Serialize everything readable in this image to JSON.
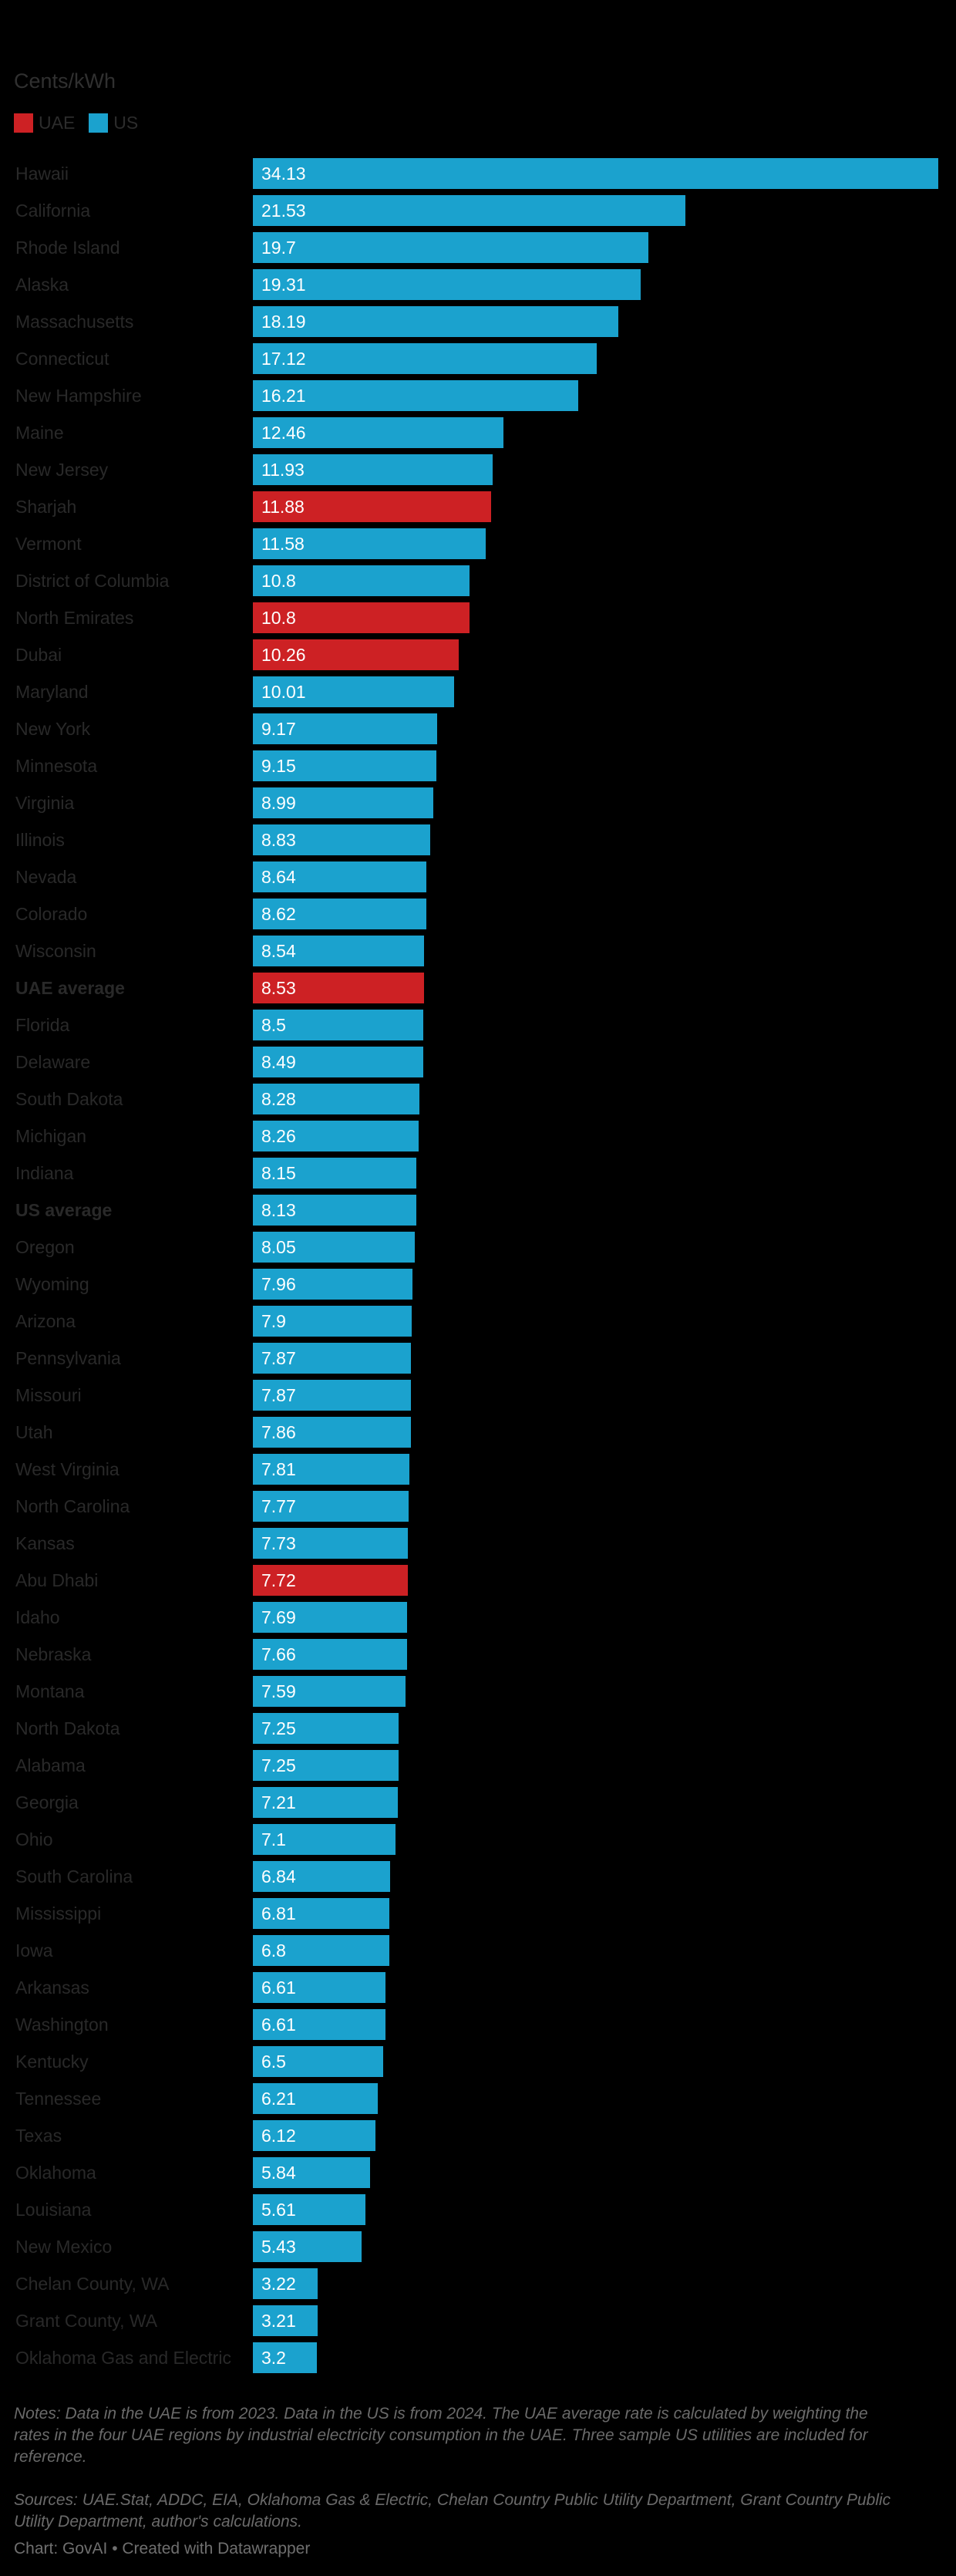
{
  "title": "Cents/kWh",
  "legend": [
    {
      "label": "UAE",
      "color": "#cd2124"
    },
    {
      "label": "US",
      "color": "#1ba2ce"
    }
  ],
  "chart_data": {
    "type": "bar",
    "orientation": "horizontal",
    "title": "Cents/kWh",
    "xlabel": "Cents/kWh",
    "xmax": 34.13,
    "grid": false,
    "legend_position": "top-left",
    "colors": {
      "UAE": "#cd2124",
      "US": "#1ba2ce"
    },
    "rows": [
      {
        "label": "Hawaii",
        "value": 34.13,
        "display": "34.13",
        "group": "US",
        "bold": false
      },
      {
        "label": "California",
        "value": 21.53,
        "display": "21.53",
        "group": "US",
        "bold": false
      },
      {
        "label": "Rhode Island",
        "value": 19.7,
        "display": "19.7",
        "group": "US",
        "bold": false
      },
      {
        "label": "Alaska",
        "value": 19.31,
        "display": "19.31",
        "group": "US",
        "bold": false
      },
      {
        "label": "Massachusetts",
        "value": 18.19,
        "display": "18.19",
        "group": "US",
        "bold": false
      },
      {
        "label": "Connecticut",
        "value": 17.12,
        "display": "17.12",
        "group": "US",
        "bold": false
      },
      {
        "label": "New Hampshire",
        "value": 16.21,
        "display": "16.21",
        "group": "US",
        "bold": false
      },
      {
        "label": "Maine",
        "value": 12.46,
        "display": "12.46",
        "group": "US",
        "bold": false
      },
      {
        "label": "New Jersey",
        "value": 11.93,
        "display": "11.93",
        "group": "US",
        "bold": false
      },
      {
        "label": "Sharjah",
        "value": 11.88,
        "display": "11.88",
        "group": "UAE",
        "bold": false
      },
      {
        "label": "Vermont",
        "value": 11.58,
        "display": "11.58",
        "group": "US",
        "bold": false
      },
      {
        "label": "District of Columbia",
        "value": 10.8,
        "display": "10.8",
        "group": "US",
        "bold": false
      },
      {
        "label": "North Emirates",
        "value": 10.8,
        "display": "10.8",
        "group": "UAE",
        "bold": false
      },
      {
        "label": "Dubai",
        "value": 10.26,
        "display": "10.26",
        "group": "UAE",
        "bold": false
      },
      {
        "label": "Maryland",
        "value": 10.01,
        "display": "10.01",
        "group": "US",
        "bold": false
      },
      {
        "label": "New York",
        "value": 9.17,
        "display": "9.17",
        "group": "US",
        "bold": false
      },
      {
        "label": "Minnesota",
        "value": 9.15,
        "display": "9.15",
        "group": "US",
        "bold": false
      },
      {
        "label": "Virginia",
        "value": 8.99,
        "display": "8.99",
        "group": "US",
        "bold": false
      },
      {
        "label": "Illinois",
        "value": 8.83,
        "display": "8.83",
        "group": "US",
        "bold": false
      },
      {
        "label": "Nevada",
        "value": 8.64,
        "display": "8.64",
        "group": "US",
        "bold": false
      },
      {
        "label": "Colorado",
        "value": 8.62,
        "display": "8.62",
        "group": "US",
        "bold": false
      },
      {
        "label": "Wisconsin",
        "value": 8.54,
        "display": "8.54",
        "group": "US",
        "bold": false
      },
      {
        "label": "UAE average",
        "value": 8.53,
        "display": "8.53",
        "group": "UAE",
        "bold": true
      },
      {
        "label": "Florida",
        "value": 8.5,
        "display": "8.5",
        "group": "US",
        "bold": false
      },
      {
        "label": "Delaware",
        "value": 8.49,
        "display": "8.49",
        "group": "US",
        "bold": false
      },
      {
        "label": "South Dakota",
        "value": 8.28,
        "display": "8.28",
        "group": "US",
        "bold": false
      },
      {
        "label": "Michigan",
        "value": 8.26,
        "display": "8.26",
        "group": "US",
        "bold": false
      },
      {
        "label": "Indiana",
        "value": 8.15,
        "display": "8.15",
        "group": "US",
        "bold": false
      },
      {
        "label": "US average",
        "value": 8.13,
        "display": "8.13",
        "group": "US",
        "bold": true
      },
      {
        "label": "Oregon",
        "value": 8.05,
        "display": "8.05",
        "group": "US",
        "bold": false
      },
      {
        "label": "Wyoming",
        "value": 7.96,
        "display": "7.96",
        "group": "US",
        "bold": false
      },
      {
        "label": "Arizona",
        "value": 7.9,
        "display": "7.9",
        "group": "US",
        "bold": false
      },
      {
        "label": "Pennsylvania",
        "value": 7.87,
        "display": "7.87",
        "group": "US",
        "bold": false
      },
      {
        "label": "Missouri",
        "value": 7.87,
        "display": "7.87",
        "group": "US",
        "bold": false
      },
      {
        "label": "Utah",
        "value": 7.86,
        "display": "7.86",
        "group": "US",
        "bold": false
      },
      {
        "label": "West Virginia",
        "value": 7.81,
        "display": "7.81",
        "group": "US",
        "bold": false
      },
      {
        "label": "North Carolina",
        "value": 7.77,
        "display": "7.77",
        "group": "US",
        "bold": false
      },
      {
        "label": "Kansas",
        "value": 7.73,
        "display": "7.73",
        "group": "US",
        "bold": false
      },
      {
        "label": "Abu Dhabi",
        "value": 7.72,
        "display": "7.72",
        "group": "UAE",
        "bold": false
      },
      {
        "label": "Idaho",
        "value": 7.69,
        "display": "7.69",
        "group": "US",
        "bold": false
      },
      {
        "label": "Nebraska",
        "value": 7.66,
        "display": "7.66",
        "group": "US",
        "bold": false
      },
      {
        "label": "Montana",
        "value": 7.59,
        "display": "7.59",
        "group": "US",
        "bold": false
      },
      {
        "label": "North Dakota",
        "value": 7.25,
        "display": "7.25",
        "group": "US",
        "bold": false
      },
      {
        "label": "Alabama",
        "value": 7.25,
        "display": "7.25",
        "group": "US",
        "bold": false
      },
      {
        "label": "Georgia",
        "value": 7.21,
        "display": "7.21",
        "group": "US",
        "bold": false
      },
      {
        "label": "Ohio",
        "value": 7.1,
        "display": "7.1",
        "group": "US",
        "bold": false
      },
      {
        "label": "South Carolina",
        "value": 6.84,
        "display": "6.84",
        "group": "US",
        "bold": false
      },
      {
        "label": "Mississippi",
        "value": 6.81,
        "display": "6.81",
        "group": "US",
        "bold": false
      },
      {
        "label": "Iowa",
        "value": 6.8,
        "display": "6.8",
        "group": "US",
        "bold": false
      },
      {
        "label": "Arkansas",
        "value": 6.61,
        "display": "6.61",
        "group": "US",
        "bold": false
      },
      {
        "label": "Washington",
        "value": 6.61,
        "display": "6.61",
        "group": "US",
        "bold": false
      },
      {
        "label": "Kentucky",
        "value": 6.5,
        "display": "6.5",
        "group": "US",
        "bold": false
      },
      {
        "label": "Tennessee",
        "value": 6.21,
        "display": "6.21",
        "group": "US",
        "bold": false
      },
      {
        "label": "Texas",
        "value": 6.12,
        "display": "6.12",
        "group": "US",
        "bold": false
      },
      {
        "label": "Oklahoma",
        "value": 5.84,
        "display": "5.84",
        "group": "US",
        "bold": false
      },
      {
        "label": "Louisiana",
        "value": 5.61,
        "display": "5.61",
        "group": "US",
        "bold": false
      },
      {
        "label": "New Mexico",
        "value": 5.43,
        "display": "5.43",
        "group": "US",
        "bold": false
      },
      {
        "label": "Chelan County, WA",
        "value": 3.22,
        "display": "3.22",
        "group": "US",
        "bold": false
      },
      {
        "label": "Grant County, WA",
        "value": 3.21,
        "display": "3.21",
        "group": "US",
        "bold": false
      },
      {
        "label": "Oklahoma Gas and Electric",
        "value": 3.2,
        "display": "3.2",
        "group": "US",
        "bold": false
      }
    ]
  },
  "notes": "Notes: Data in the UAE is from 2023. Data in the US is from 2024. The UAE average rate is calculated by weighting the rates in the four UAE regions by industrial electricity consumption in the UAE. Three sample US utilities are included for reference.",
  "sources": "Sources: UAE.Stat, ADDC, EIA, Oklahoma Gas & Electric, Chelan Country Public Utility Department, Grant Country Public Utility Department, author's calculations.",
  "credit": "Chart: GovAI • Created with Datawrapper"
}
